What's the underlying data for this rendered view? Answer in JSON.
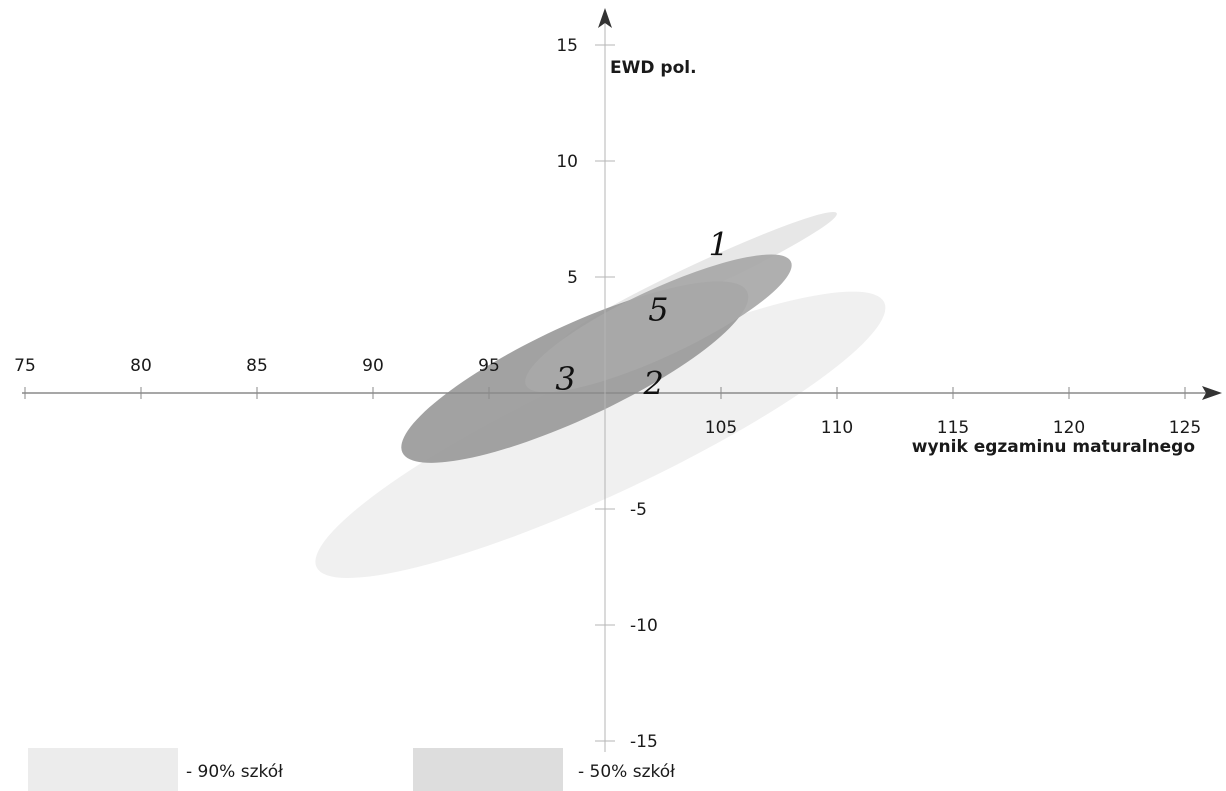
{
  "chart_data": {
    "type": "scatter",
    "title": "",
    "xlabel": "wynik egzaminu maturalnego",
    "ylabel": "EWD pol.",
    "xlim": [
      75,
      125
    ],
    "ylim": [
      -15,
      15
    ],
    "x_origin": 100,
    "y_origin": 0,
    "x_ticks": [
      75,
      80,
      85,
      90,
      95,
      105,
      110,
      115,
      120,
      125
    ],
    "y_ticks": [
      15,
      10,
      5,
      -5,
      -10,
      -15
    ],
    "grid": false,
    "legend": [
      {
        "label": "- 90% szkół",
        "color": "#ececec"
      },
      {
        "label": "- 50% szkół",
        "color": "#dddddd"
      }
    ],
    "series": [
      {
        "name": "1",
        "center": [
          104.1,
          5.0
        ],
        "radius_x": 6.5,
        "radius_y": 0.6,
        "angle_deg": 25,
        "color": "#e7e7e7",
        "label_pos": [
          104.9,
          6.4
        ]
      },
      {
        "name": "5",
        "center": [
          102.3,
          3.0
        ],
        "radius_x": 6.3,
        "radius_y": 1.45,
        "angle_deg": 25,
        "color": "#a8a8a8",
        "label_pos": [
          102.3,
          3.6
        ]
      },
      {
        "name": "3",
        "center": [
          98.7,
          0.9
        ],
        "radius_x": 8.2,
        "radius_y": 2.0,
        "angle_deg": 25,
        "color": "#9a9a9a",
        "label_pos": [
          98.3,
          0.6
        ]
      },
      {
        "name": "2",
        "center": [
          99.8,
          -1.8
        ],
        "radius_x": 13.5,
        "radius_y": 2.6,
        "angle_deg": 25,
        "color": "#f0f0f0",
        "label_pos": [
          102.1,
          0.4
        ]
      }
    ]
  }
}
